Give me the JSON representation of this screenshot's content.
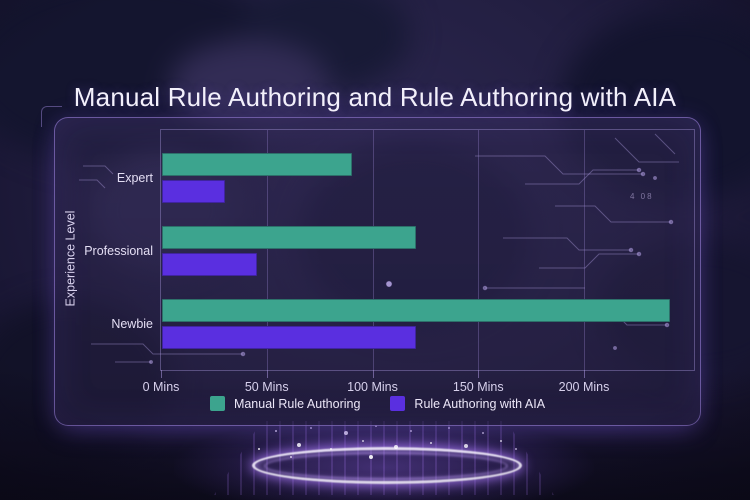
{
  "title": "Manual Rule Authoring and Rule Authoring with AIA",
  "chart_data": {
    "type": "bar",
    "orientation": "horizontal",
    "title": "Manual Rule Authoring and Rule Authoring with AIA",
    "categories": [
      "Expert",
      "Professional",
      "Newbie"
    ],
    "series": [
      {
        "name": "Manual Rule Authoring",
        "color": "#3CA48E",
        "values": [
          90,
          120,
          240
        ]
      },
      {
        "name": "Rule Authoring with AIA",
        "color": "#5A2FE0",
        "values": [
          30,
          45,
          120
        ]
      }
    ],
    "x_ticks": [
      {
        "value": 0,
        "label": "0 Mins"
      },
      {
        "value": 50,
        "label": "50 Mins"
      },
      {
        "value": 100,
        "label": "100 Mins"
      },
      {
        "value": 150,
        "label": "150 Mins"
      },
      {
        "value": 200,
        "label": "200 Mins"
      }
    ],
    "xlim": [
      0,
      252
    ],
    "x_unit": "Mins",
    "ylabel": "Experience Level",
    "legend_position": "bottom",
    "grid": "vertical"
  },
  "decor": {
    "circuit_code_text": "4 08"
  }
}
